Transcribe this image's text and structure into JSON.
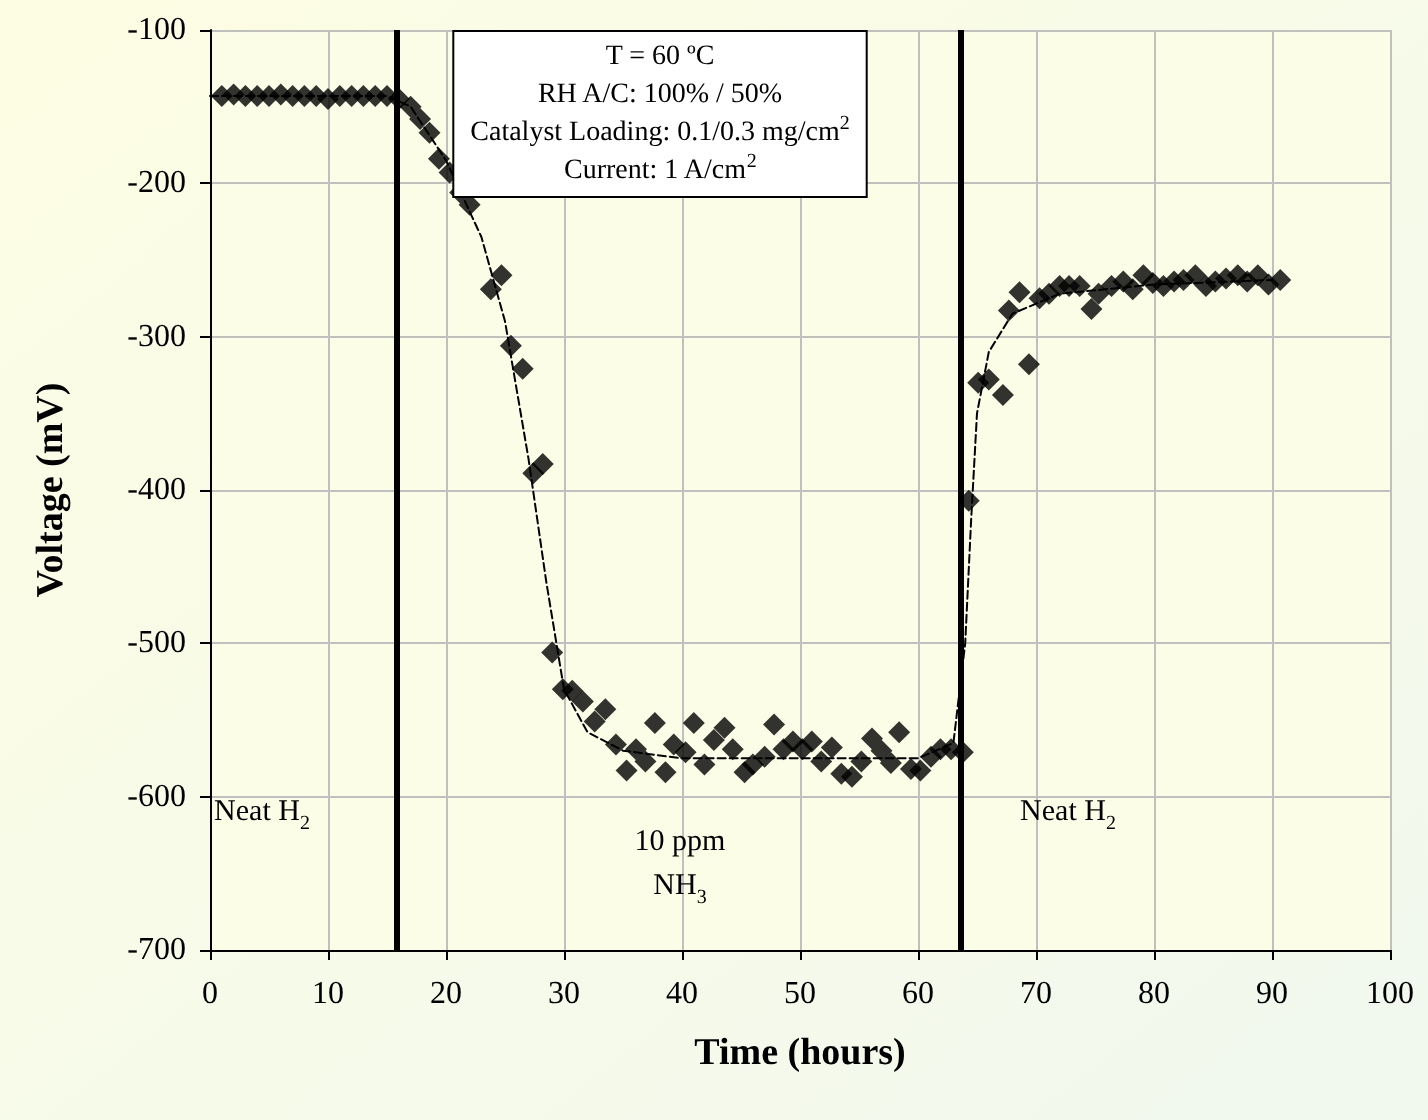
{
  "chart_data": {
    "type": "scatter",
    "xlabel": "Time (hours)",
    "ylabel": "Voltage (mV)",
    "xlim": [
      0,
      100
    ],
    "xticks": [
      0,
      10,
      20,
      30,
      40,
      50,
      60,
      70,
      80,
      90,
      100
    ],
    "ylim": [
      -700,
      -100
    ],
    "yticks": [
      -700,
      -600,
      -500,
      -400,
      -300,
      -200,
      -100
    ],
    "grid": true,
    "marker": "diamond",
    "series": [
      {
        "color": "#000000",
        "x": [
          1,
          2,
          3,
          4,
          5,
          6,
          7,
          8,
          9,
          10,
          11,
          12,
          13,
          14,
          15,
          16,
          17,
          17.8,
          18.6,
          19.4,
          20.3,
          21.2,
          22.0,
          23.8,
          24.7,
          25.5,
          26.5,
          27.4,
          28.2,
          29.0,
          29.9,
          30.7,
          31.6,
          32.6,
          33.5,
          34.4,
          35.3,
          36.1,
          36.9,
          37.7,
          38.6,
          39.3,
          40.3,
          41.0,
          41.9,
          42.7,
          43.6,
          44.3,
          45.3,
          46.0,
          47.0,
          47.8,
          48.6,
          49.4,
          50.2,
          51.0,
          51.8,
          52.7,
          53.5,
          54.4,
          55.2,
          56.1,
          56.9,
          57.7,
          58.4,
          59.4,
          60.2,
          61.1,
          61.9,
          62.8,
          63.8,
          64.3,
          65.1,
          66.0,
          67.2,
          67.7,
          68.6,
          69.4,
          70.3,
          71.1,
          72.0,
          72.8,
          73.7,
          74.7,
          75.3,
          76.4,
          77.4,
          78.2,
          79.1,
          79.9,
          80.8,
          81.7,
          82.5,
          83.5,
          84.4,
          85.2,
          86.1,
          87.1,
          87.9,
          88.8,
          89.7,
          90.7
        ],
        "values": [
          -143,
          -142,
          -143,
          -143,
          -143,
          -142,
          -143,
          -143,
          -143,
          -145,
          -143,
          -143,
          -143,
          -143,
          -143,
          -145,
          -150,
          -158,
          -167,
          -184,
          -193,
          -206,
          -214,
          -269,
          -260,
          -306,
          -321,
          -389,
          -383,
          -506,
          -530,
          -531,
          -538,
          -551,
          -543,
          -566,
          -583,
          -569,
          -577,
          -552,
          -584,
          -566,
          -571,
          -552,
          -579,
          -563,
          -555,
          -569,
          -584,
          -579,
          -574,
          -553,
          -569,
          -564,
          -569,
          -564,
          -577,
          -568,
          -585,
          -587,
          -577,
          -562,
          -570,
          -578,
          -558,
          -582,
          -583,
          -574,
          -569,
          -569,
          -571,
          -407,
          -330,
          -328,
          -338,
          -283,
          -271,
          -318,
          -275,
          -272,
          -267,
          -267,
          -267,
          -282,
          -272,
          -267,
          -264,
          -269,
          -260,
          -265,
          -267,
          -264,
          -263,
          -260,
          -267,
          -264,
          -262,
          -260,
          -264,
          -260,
          -266,
          -263
        ]
      },
      {
        "type": "line",
        "color": "#000000",
        "marker": "none",
        "line_style": "dashed",
        "x": [
          0,
          15,
          17,
          20,
          23,
          25,
          27,
          28.5,
          30,
          32,
          35,
          40,
          50,
          60,
          63,
          64,
          64.5,
          65,
          66,
          68,
          72,
          80,
          90
        ],
        "values": [
          -143,
          -143,
          -150,
          -185,
          -235,
          -290,
          -380,
          -460,
          -530,
          -558,
          -570,
          -575,
          -575,
          -575,
          -565,
          -500,
          -420,
          -350,
          -310,
          -285,
          -272,
          -266,
          -263
        ]
      }
    ],
    "ref_lines": [
      {
        "axis": "x",
        "value": 15.8,
        "color": "#000000"
      },
      {
        "axis": "x",
        "value": 63.6,
        "color": "#000000"
      }
    ],
    "annotations": [
      "T = 60 ºC",
      "RH A/C: 100% / 50%",
      "Catalyst Loading: 0.1/0.3 mg/cm$^{2}$",
      "Current: 1 A/cm$^{2}$",
      "Neat H$_{2}$",
      "10 ppm\nNH$_{3}$",
      "Neat H$_{2}$"
    ]
  }
}
